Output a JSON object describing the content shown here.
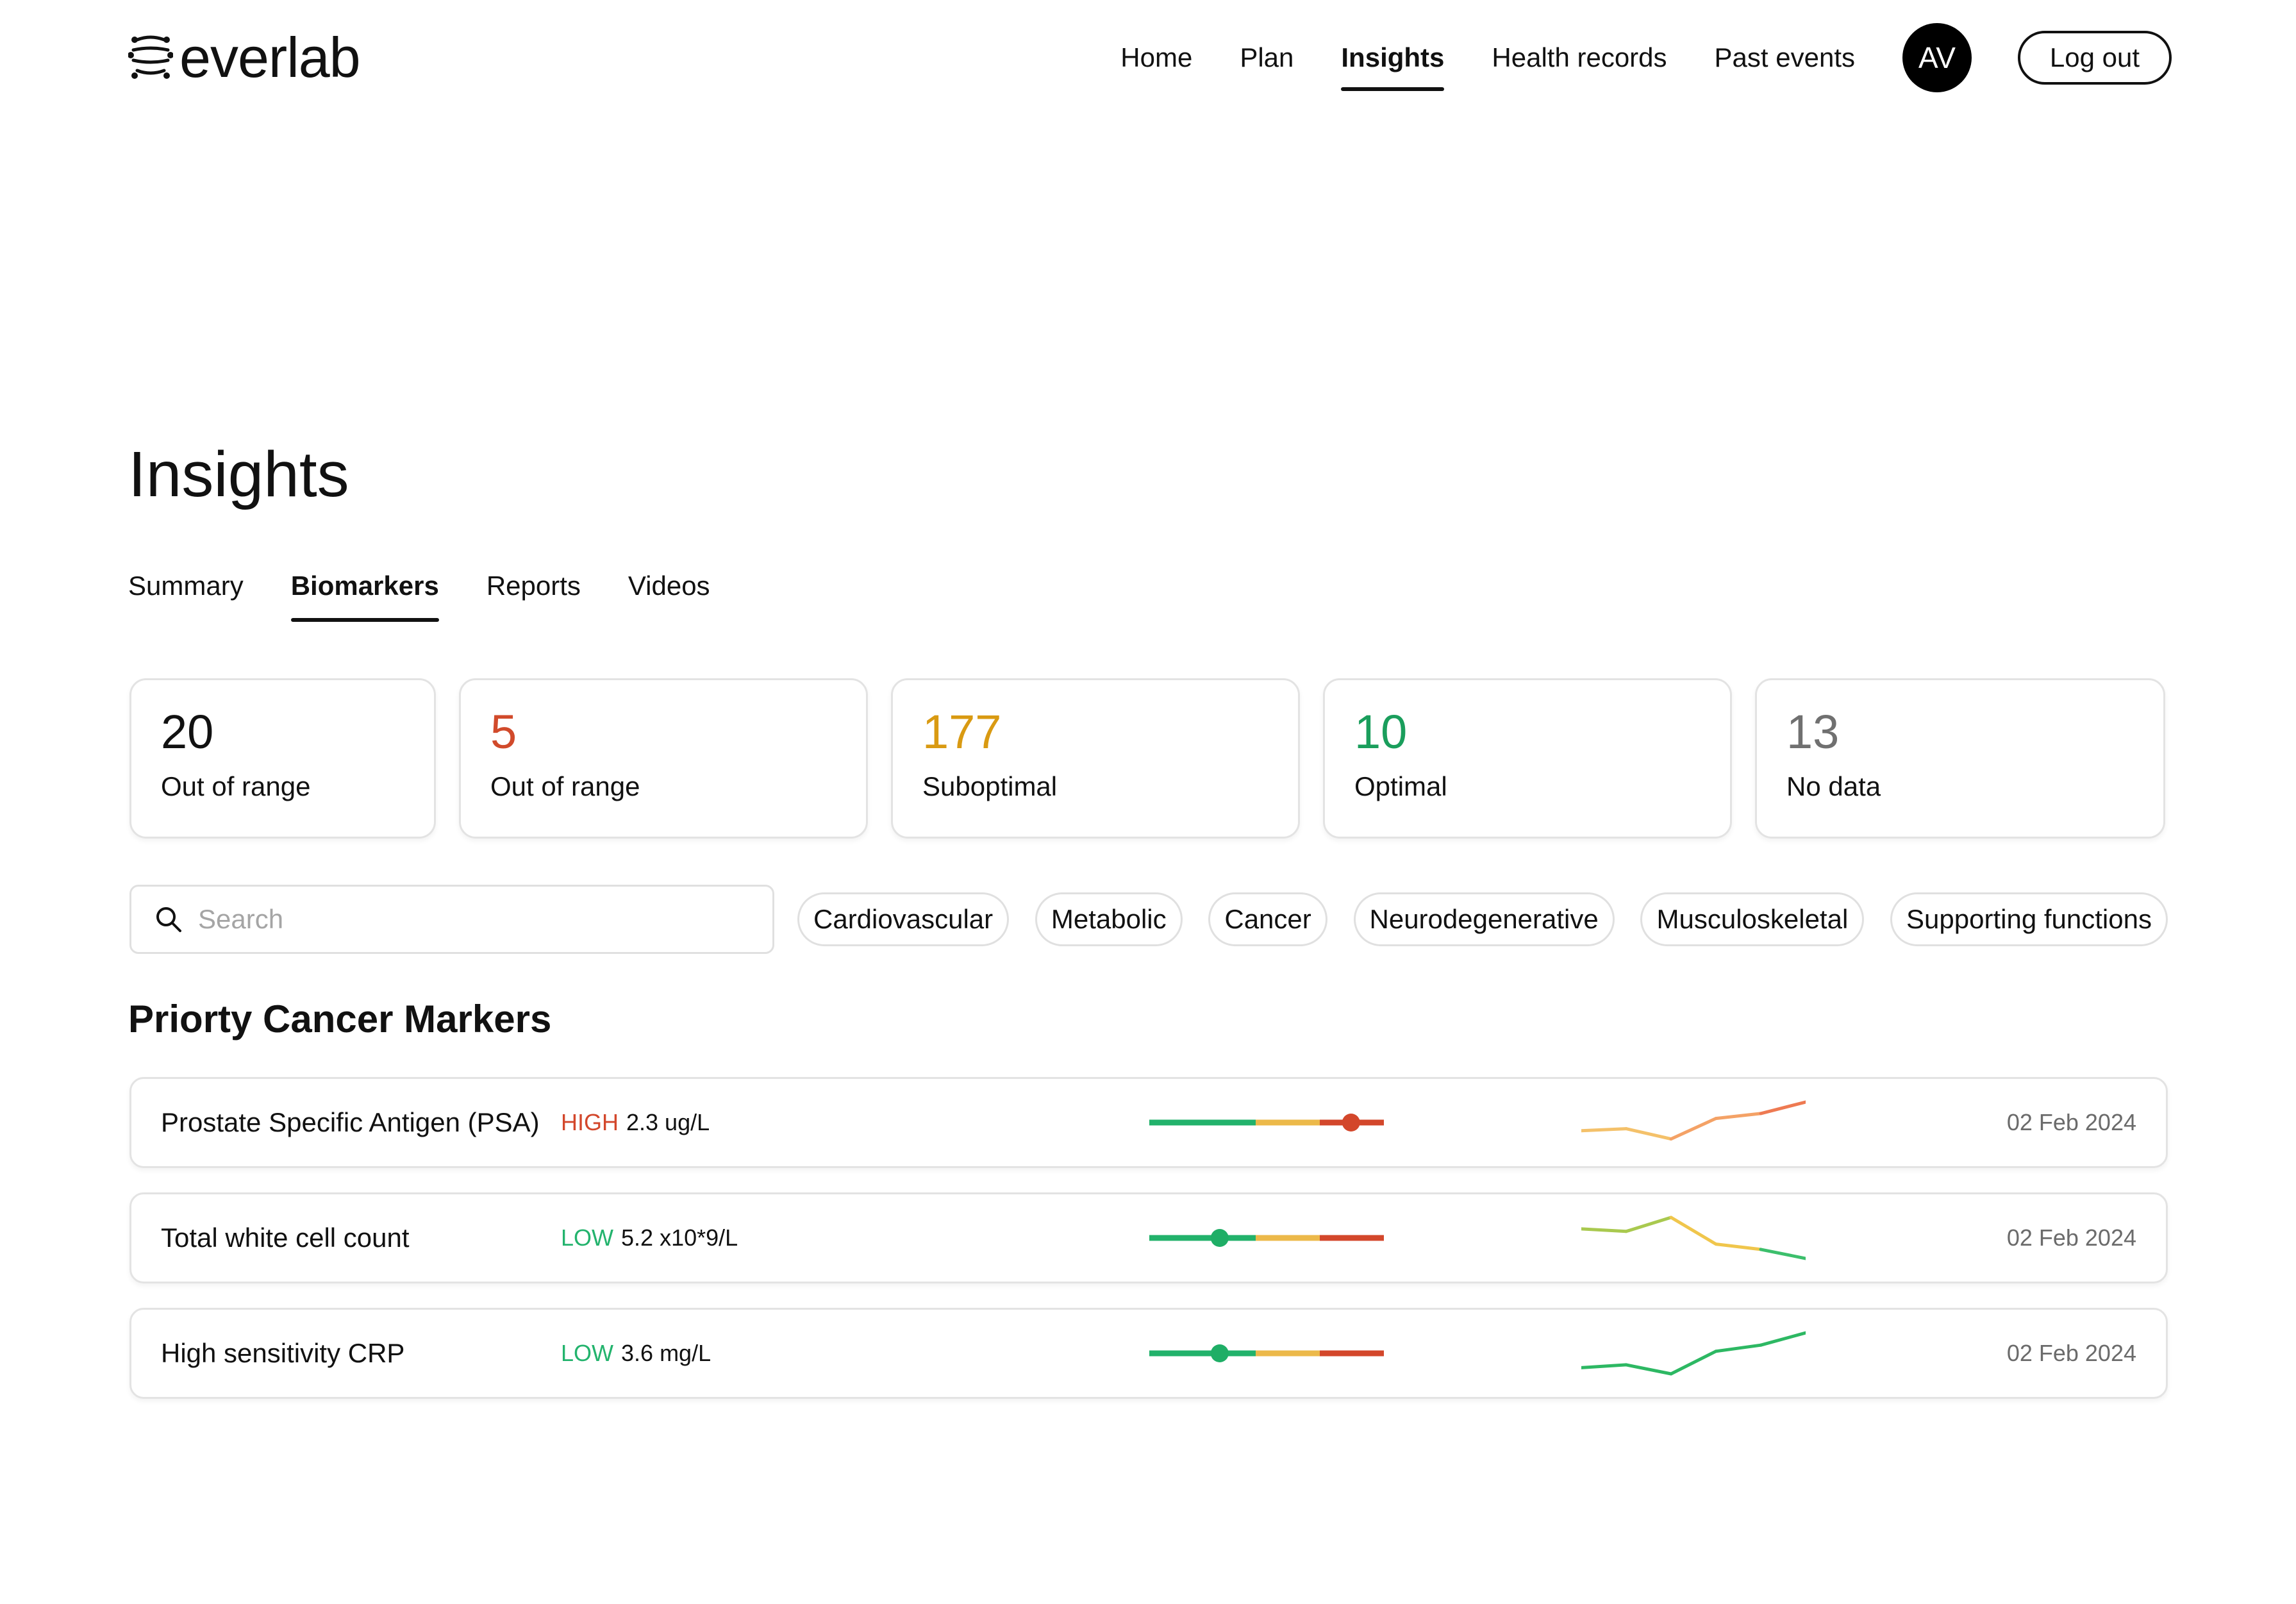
{
  "brand": {
    "name": "everlab"
  },
  "nav": {
    "items": [
      {
        "label": "Home",
        "active": false
      },
      {
        "label": "Plan",
        "active": false
      },
      {
        "label": "Insights",
        "active": true
      },
      {
        "label": "Health records",
        "active": false
      },
      {
        "label": "Past events",
        "active": false
      }
    ],
    "avatar_initials": "AV",
    "logout_label": "Log out"
  },
  "page": {
    "title": "Insights"
  },
  "tabs": [
    {
      "label": "Summary",
      "active": false
    },
    {
      "label": "Biomarkers",
      "active": true
    },
    {
      "label": "Reports",
      "active": false
    },
    {
      "label": "Videos",
      "active": false
    }
  ],
  "stats": [
    {
      "value": "20",
      "label": "Out of range",
      "color": "#111111"
    },
    {
      "value": "5",
      "label": "Out of range",
      "color": "#d14a2b"
    },
    {
      "value": "177",
      "label": "Suboptimal",
      "color": "#d99a12"
    },
    {
      "value": "10",
      "label": "Optimal",
      "color": "#1a9e5c"
    },
    {
      "value": "13",
      "label": "No data",
      "color": "#707070"
    }
  ],
  "search": {
    "placeholder": "Search",
    "value": ""
  },
  "chips": [
    "Cardiovascular",
    "Metabolic",
    "Cancer",
    "Neurodegenerative",
    "Musculoskeletal",
    "Supporting functions"
  ],
  "section": {
    "title": "Priorty Cancer Markers"
  },
  "colors": {
    "optimal": "#22b26b",
    "suboptimal": "#ecb94a",
    "out_of_range": "#d3472b",
    "high_text": "#d3472b",
    "low_text": "#23b36d"
  },
  "markers": [
    {
      "name": "Prostate Specific Antigen (PSA)",
      "flag": "HIGH",
      "flag_color": "#d3472b",
      "value": "2.3 ug/L",
      "range_position": 0.86,
      "dot_color": "#d3472b",
      "trend": [
        0.3,
        0.35,
        0.1,
        0.6,
        0.72,
        1.0
      ],
      "trend_colors": [
        "#f4c16a",
        "#f4a266",
        "#ee7a52"
      ],
      "date": "02 Feb 2024"
    },
    {
      "name": "Total white cell count",
      "flag": "LOW",
      "flag_color": "#23b36d",
      "value": "5.2 x10*9/L",
      "range_position": 0.3,
      "dot_color": "#1fae66",
      "trend": [
        0.72,
        0.66,
        1.0,
        0.35,
        0.22,
        0.0
      ],
      "trend_colors": [
        "#a9c94f",
        "#f0c64c",
        "#3cbf6c"
      ],
      "date": "02 Feb 2024"
    },
    {
      "name": "High sensitivity CRP",
      "flag": "LOW",
      "flag_color": "#23b36d",
      "value": "3.6 mg/L",
      "range_position": 0.3,
      "dot_color": "#1fae66",
      "trend": [
        0.15,
        0.22,
        0.0,
        0.55,
        0.7,
        1.0
      ],
      "trend_colors": [
        "#2db863",
        "#2db863",
        "#2db863"
      ],
      "date": "02 Feb 2024"
    }
  ]
}
